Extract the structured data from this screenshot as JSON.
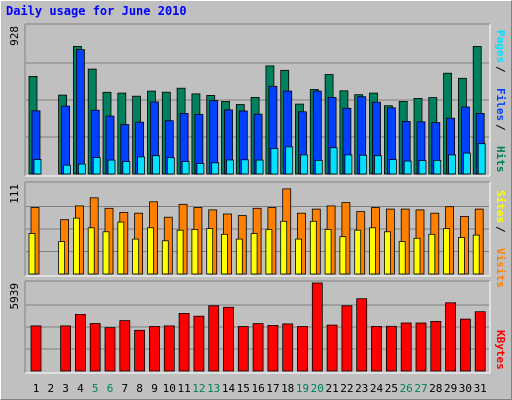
{
  "chart_data": {
    "type": "bar",
    "title": "Daily usage for June 2010",
    "categories": [
      "1",
      "2",
      "3",
      "4",
      "5",
      "6",
      "7",
      "8",
      "9",
      "10",
      "11",
      "12",
      "13",
      "14",
      "15",
      "16",
      "17",
      "18",
      "19",
      "20",
      "21",
      "22",
      "23",
      "24",
      "25",
      "26",
      "27",
      "28",
      "29",
      "30",
      "31"
    ],
    "weekend_days": [
      "5",
      "6",
      "12",
      "13",
      "19",
      "20",
      "26",
      "27"
    ],
    "panels": [
      {
        "id": "hits",
        "max_label": "928",
        "ylim": [
          0,
          928
        ],
        "series": [
          {
            "name": "Hits",
            "color": "#00805c",
            "values": [
              612,
              0,
              495,
              800,
              658,
              512,
              507,
              488,
              520,
              513,
              538,
              502,
              493,
              455,
              436,
              480,
              678,
              650,
              438,
              530,
              624,
              522,
              497,
              507,
              428,
              455,
              474,
              479,
              632,
              600,
              800
            ]
          },
          {
            "name": "Files",
            "color": "#0040ff",
            "values": [
              396,
              0,
              426,
              780,
              400,
              363,
              310,
              325,
              452,
              334,
              380,
              373,
              460,
              402,
              395,
              375,
              550,
              520,
              390,
              520,
              480,
              412,
              485,
              450,
              415,
              330,
              327,
              322,
              350,
              420,
              380
            ]
          },
          {
            "name": "Pages",
            "color": "#00e0ff",
            "values": [
              90,
              0,
              55,
              62,
              103,
              87,
              78,
              107,
              115,
              102,
              78,
              65,
              70,
              88,
              89,
              87,
              160,
              170,
              120,
              85,
              165,
              120,
              117,
              115,
              90,
              81,
              84,
              85,
              120,
              131,
              190
            ]
          }
        ]
      },
      {
        "id": "visits",
        "max_label": "111",
        "ylim": [
          0,
          111
        ],
        "series": [
          {
            "name": "Visits",
            "color": "#ff8000",
            "values": [
              82,
              0,
              67,
              84,
              94,
              81,
              76,
              75,
              89,
              70,
              86,
              82,
              79,
              74,
              72,
              81,
              82,
              105,
              75,
              80,
              84,
              88,
              77,
              82,
              80,
              80,
              79,
              75,
              83,
              71,
              80
            ]
          },
          {
            "name": "Sites",
            "color": "#ffff00",
            "values": [
              50,
              0,
              40,
              69,
              57,
              52,
              64,
              43,
              57,
              41,
              54,
              55,
              56,
              49,
              43,
              50,
              55,
              65,
              43,
              65,
              55,
              46,
              54,
              57,
              52,
              40,
              44,
              49,
              56,
              45,
              48
            ]
          }
        ]
      },
      {
        "id": "kbytes",
        "max_label": "5939",
        "ylim": [
          0,
          5939
        ],
        "series": [
          {
            "name": "KBytes",
            "color": "#ff0000",
            "values": [
              3043,
              0,
              3047,
              3823,
              3206,
              2921,
              3400,
              2750,
              3000,
              3042,
              3888,
              3700,
              4400,
              4300,
              3000,
              3200,
              3080,
              3180,
              3000,
              5939,
              3100,
              4400,
              4880,
              3008,
              3020,
              3240,
              3240,
              3350,
              4600,
              3500,
              4000
            ]
          }
        ]
      }
    ],
    "legend": {
      "top": [
        "Pages",
        "Files",
        "Hits"
      ],
      "mid": [
        "Sites",
        "Visits"
      ],
      "bottom": [
        "KBytes"
      ]
    },
    "grid": true,
    "legend_position": "right"
  }
}
